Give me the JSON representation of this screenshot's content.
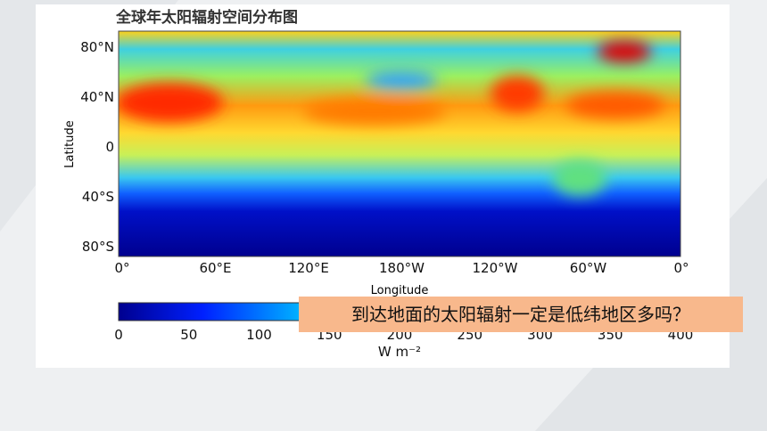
{
  "slide": {
    "figure": {
      "title": "全球年太阳辐射空间分布图",
      "y_axis_label": "Latitude",
      "x_axis_label": "Longitude",
      "y_ticks": [
        "80°N",
        "40°N",
        "0",
        "40°S",
        "80°S"
      ],
      "x_ticks": [
        "0°",
        "60°E",
        "120°E",
        "180°W",
        "120°W",
        "60°W",
        "0°"
      ],
      "colorbar": {
        "ticks": [
          0,
          50,
          100,
          150,
          200,
          250,
          300,
          350,
          400
        ],
        "unit": "W m⁻²"
      }
    },
    "callout": "到达地面的太阳辐射一定是低纬地区多吗？"
  }
}
